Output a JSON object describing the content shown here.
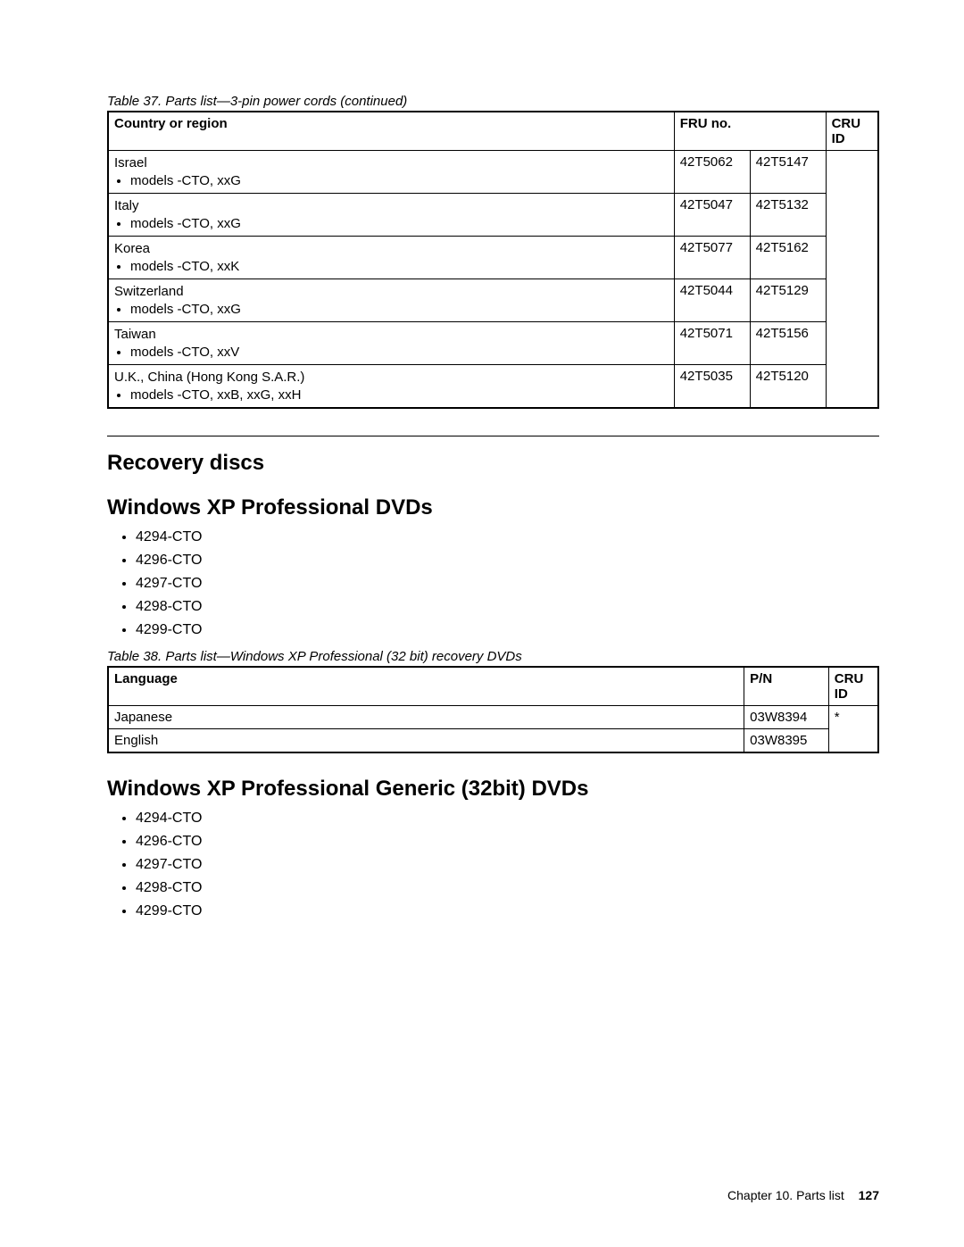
{
  "table37": {
    "caption": "Table 37. Parts list—3-pin power cords (continued)",
    "headers": {
      "country": "Country or region",
      "fru": "FRU no.",
      "cru": "CRU ID"
    },
    "rows": [
      {
        "country": "Israel",
        "models": "models -CTO, xxG",
        "fru1": "42T5062",
        "fru2": "42T5147"
      },
      {
        "country": "Italy",
        "models": "models -CTO, xxG",
        "fru1": "42T5047",
        "fru2": "42T5132"
      },
      {
        "country": "Korea",
        "models": "models -CTO, xxK",
        "fru1": "42T5077",
        "fru2": "42T5162"
      },
      {
        "country": "Switzerland",
        "models": "models -CTO, xxG",
        "fru1": "42T5044",
        "fru2": "42T5129"
      },
      {
        "country": "Taiwan",
        "models": "models -CTO, xxV",
        "fru1": "42T5071",
        "fru2": "42T5156"
      },
      {
        "country": "U.K., China (Hong Kong S.A.R.)",
        "models": "models -CTO, xxB, xxG, xxH",
        "fru1": "42T5035",
        "fru2": "42T5120"
      }
    ]
  },
  "section1": {
    "title": "Recovery discs"
  },
  "section2": {
    "title": "Windows XP Professional DVDs",
    "bullets": [
      "4294-CTO",
      "4296-CTO",
      "4297-CTO",
      "4298-CTO",
      "4299-CTO"
    ]
  },
  "table38": {
    "caption": "Table 38. Parts list—Windows XP Professional (32 bit) recovery DVDs",
    "headers": {
      "language": "Language",
      "pn": "P/N",
      "cru": "CRU ID"
    },
    "rows": [
      {
        "language": "Japanese",
        "pn": "03W8394",
        "cru": "*"
      },
      {
        "language": "English",
        "pn": "03W8395",
        "cru": ""
      }
    ]
  },
  "section3": {
    "title": "Windows XP Professional Generic (32bit) DVDs",
    "bullets": [
      "4294-CTO",
      "4296-CTO",
      "4297-CTO",
      "4298-CTO",
      "4299-CTO"
    ]
  },
  "footer": {
    "chapter": "Chapter 10. Parts list",
    "page": "127"
  }
}
